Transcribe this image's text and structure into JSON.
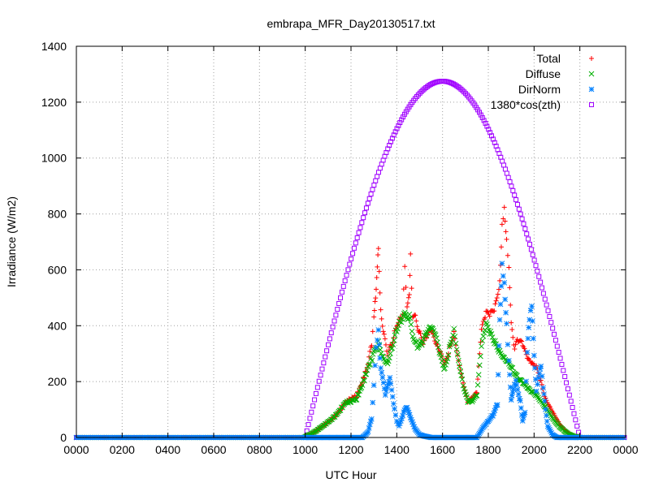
{
  "chart_data": {
    "type": "scatter",
    "title": "embrapa_MFR_Day20130517.txt",
    "xlabel": "UTC Hour",
    "ylabel": "Irradiance (W/m2)",
    "xlim": [
      0,
      24
    ],
    "ylim": [
      0,
      1400
    ],
    "x_ticks": [
      0,
      2,
      4,
      6,
      8,
      10,
      12,
      14,
      16,
      18,
      20,
      22,
      24
    ],
    "x_tick_labels": [
      "0000",
      "0200",
      "0400",
      "0600",
      "0800",
      "1000",
      "1200",
      "1400",
      "1600",
      "1800",
      "2000",
      "2200",
      "0000"
    ],
    "y_ticks": [
      0,
      200,
      400,
      600,
      800,
      1000,
      1200,
      1400
    ],
    "y_tick_labels": [
      "0",
      "200",
      "400",
      "600",
      "800",
      "1000",
      "1200",
      "1400"
    ],
    "grid": true,
    "legend_position": "top-right",
    "series": [
      {
        "name": "Total",
        "color": "#ff0000",
        "marker": "plus",
        "points": [
          [
            10.0,
            3
          ],
          [
            10.25,
            12
          ],
          [
            10.5,
            25
          ],
          [
            10.75,
            40
          ],
          [
            11.0,
            55
          ],
          [
            11.25,
            72
          ],
          [
            11.5,
            95
          ],
          [
            11.75,
            125
          ],
          [
            12.0,
            140
          ],
          [
            12.25,
            150
          ],
          [
            12.5,
            200
          ],
          [
            12.75,
            260
          ],
          [
            12.9,
            340
          ],
          [
            13.0,
            420
          ],
          [
            13.05,
            480
          ],
          [
            13.1,
            540
          ],
          [
            13.15,
            620
          ],
          [
            13.2,
            670
          ],
          [
            13.3,
            460
          ],
          [
            13.45,
            360
          ],
          [
            13.6,
            300
          ],
          [
            13.75,
            330
          ],
          [
            13.9,
            370
          ],
          [
            14.0,
            410
          ],
          [
            14.15,
            420
          ],
          [
            14.25,
            450
          ],
          [
            14.35,
            600
          ],
          [
            14.45,
            480
          ],
          [
            14.55,
            500
          ],
          [
            14.6,
            650
          ],
          [
            14.7,
            440
          ],
          [
            14.85,
            420
          ],
          [
            15.0,
            370
          ],
          [
            15.15,
            340
          ],
          [
            15.3,
            360
          ],
          [
            15.5,
            380
          ],
          [
            15.7,
            330
          ],
          [
            15.9,
            300
          ],
          [
            16.1,
            260
          ],
          [
            16.3,
            320
          ],
          [
            16.5,
            380
          ],
          [
            16.7,
            280
          ],
          [
            16.9,
            200
          ],
          [
            17.1,
            130
          ],
          [
            17.3,
            140
          ],
          [
            17.5,
            160
          ],
          [
            17.7,
            380
          ],
          [
            17.9,
            440
          ],
          [
            18.1,
            440
          ],
          [
            18.3,
            470
          ],
          [
            18.5,
            560
          ],
          [
            18.6,
            760
          ],
          [
            18.7,
            830
          ],
          [
            18.8,
            700
          ],
          [
            18.9,
            620
          ],
          [
            19.0,
            400
          ],
          [
            19.15,
            320
          ],
          [
            19.3,
            350
          ],
          [
            19.5,
            330
          ],
          [
            19.7,
            280
          ],
          [
            19.9,
            260
          ],
          [
            20.1,
            250
          ],
          [
            20.3,
            200
          ],
          [
            20.5,
            140
          ],
          [
            20.7,
            110
          ],
          [
            20.9,
            80
          ],
          [
            21.1,
            50
          ],
          [
            21.3,
            30
          ],
          [
            21.5,
            15
          ],
          [
            21.75,
            5
          ],
          [
            22.0,
            0
          ]
        ]
      },
      {
        "name": "Diffuse",
        "color": "#00b000",
        "marker": "cross",
        "points": [
          [
            10.0,
            3
          ],
          [
            10.25,
            12
          ],
          [
            10.5,
            25
          ],
          [
            10.75,
            40
          ],
          [
            11.0,
            55
          ],
          [
            11.25,
            72
          ],
          [
            11.5,
            95
          ],
          [
            11.75,
            125
          ],
          [
            12.0,
            130
          ],
          [
            12.25,
            140
          ],
          [
            12.5,
            190
          ],
          [
            12.75,
            250
          ],
          [
            13.0,
            300
          ],
          [
            13.2,
            340
          ],
          [
            13.4,
            290
          ],
          [
            13.6,
            270
          ],
          [
            13.8,
            330
          ],
          [
            14.0,
            390
          ],
          [
            14.2,
            420
          ],
          [
            14.4,
            440
          ],
          [
            14.55,
            430
          ],
          [
            14.7,
            370
          ],
          [
            14.9,
            330
          ],
          [
            15.1,
            340
          ],
          [
            15.3,
            370
          ],
          [
            15.5,
            390
          ],
          [
            15.7,
            360
          ],
          [
            15.9,
            290
          ],
          [
            16.1,
            240
          ],
          [
            16.3,
            320
          ],
          [
            16.5,
            390
          ],
          [
            16.7,
            280
          ],
          [
            16.9,
            190
          ],
          [
            17.1,
            130
          ],
          [
            17.3,
            130
          ],
          [
            17.5,
            150
          ],
          [
            17.7,
            320
          ],
          [
            17.9,
            400
          ],
          [
            18.1,
            370
          ],
          [
            18.3,
            340
          ],
          [
            18.5,
            310
          ],
          [
            18.7,
            290
          ],
          [
            18.9,
            270
          ],
          [
            19.1,
            240
          ],
          [
            19.3,
            210
          ],
          [
            19.5,
            195
          ],
          [
            19.7,
            175
          ],
          [
            19.9,
            160
          ],
          [
            20.1,
            150
          ],
          [
            20.3,
            130
          ],
          [
            20.5,
            110
          ],
          [
            20.7,
            85
          ],
          [
            20.9,
            60
          ],
          [
            21.1,
            40
          ],
          [
            21.3,
            25
          ],
          [
            21.5,
            12
          ],
          [
            21.75,
            4
          ],
          [
            22.0,
            0
          ]
        ]
      },
      {
        "name": "DirNorm",
        "color": "#0080ff",
        "marker": "star",
        "points": [
          [
            10.0,
            0
          ],
          [
            11.0,
            0
          ],
          [
            12.0,
            0
          ],
          [
            12.5,
            0
          ],
          [
            12.75,
            20
          ],
          [
            12.9,
            70
          ],
          [
            13.0,
            180
          ],
          [
            13.1,
            330
          ],
          [
            13.2,
            380
          ],
          [
            13.3,
            250
          ],
          [
            13.5,
            150
          ],
          [
            13.7,
            210
          ],
          [
            13.9,
            100
          ],
          [
            14.0,
            60
          ],
          [
            14.1,
            40
          ],
          [
            14.3,
            90
          ],
          [
            14.45,
            110
          ],
          [
            14.6,
            70
          ],
          [
            14.8,
            30
          ],
          [
            15.0,
            10
          ],
          [
            15.2,
            5
          ],
          [
            15.5,
            0
          ],
          [
            16.0,
            0
          ],
          [
            16.5,
            0
          ],
          [
            17.0,
            0
          ],
          [
            17.5,
            0
          ],
          [
            17.8,
            40
          ],
          [
            18.0,
            60
          ],
          [
            18.2,
            80
          ],
          [
            18.4,
            120
          ],
          [
            18.5,
            420
          ],
          [
            18.6,
            620
          ],
          [
            18.7,
            560
          ],
          [
            18.8,
            400
          ],
          [
            18.9,
            280
          ],
          [
            19.0,
            130
          ],
          [
            19.1,
            180
          ],
          [
            19.2,
            200
          ],
          [
            19.4,
            130
          ],
          [
            19.5,
            60
          ],
          [
            19.6,
            90
          ],
          [
            19.7,
            300
          ],
          [
            19.8,
            430
          ],
          [
            19.9,
            460
          ],
          [
            20.0,
            300
          ],
          [
            20.1,
            160
          ],
          [
            20.2,
            220
          ],
          [
            20.3,
            250
          ],
          [
            20.4,
            180
          ],
          [
            20.5,
            100
          ],
          [
            20.6,
            40
          ],
          [
            20.8,
            10
          ],
          [
            21.0,
            0
          ],
          [
            22.0,
            0
          ]
        ]
      },
      {
        "name": "1380*cos(zth)",
        "color": "#a000ff",
        "marker": "square",
        "function": {
          "peak": 1275,
          "peak_hour": 16.0,
          "rise_hour": 10.0,
          "set_hour": 22.0
        }
      }
    ]
  }
}
